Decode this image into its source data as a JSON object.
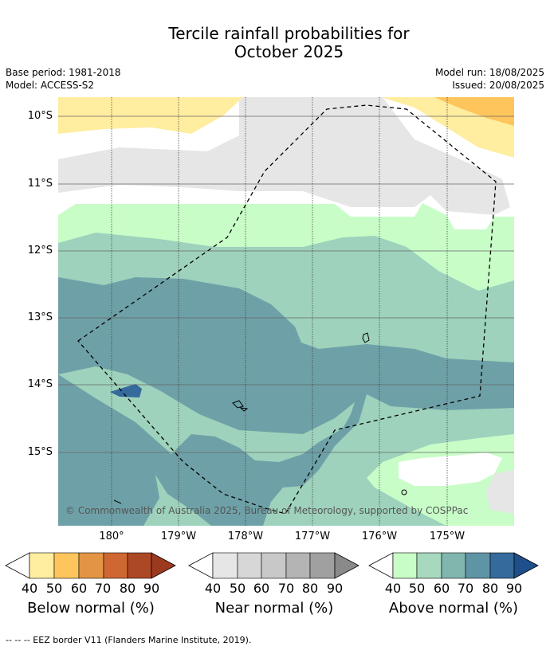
{
  "title_line1": "Tercile rainfall probabilities for",
  "title_line2": "October 2025",
  "meta": {
    "base_period": "Base period: 1981-2018",
    "model": "Model: ACCESS-S2",
    "model_run": "Model run: 18/08/2025",
    "issued": "Issued: 20/08/2025"
  },
  "lat_labels": [
    "10°S",
    "11°S",
    "12°S",
    "13°S",
    "14°S",
    "15°S"
  ],
  "lon_labels": [
    "180°",
    "179°W",
    "178°W",
    "177°W",
    "176°W",
    "175°W"
  ],
  "copyright": "© Commonwealth of Australia 2025, Bureau of Meteorology, supported by COSPPac",
  "colorbars": [
    {
      "label": "Below normal (%)",
      "ticks": [
        "40",
        "50",
        "60",
        "70",
        "80",
        "90"
      ],
      "colors": [
        "#ffeda0",
        "#fec55c",
        "#e39445",
        "#cf6733",
        "#ad4826",
        "#9b3a1e"
      ]
    },
    {
      "label": "Near normal (%)",
      "ticks": [
        "40",
        "50",
        "60",
        "70",
        "80",
        "90"
      ],
      "colors": [
        "#e6e6e6",
        "#d7d7d7",
        "#c8c8c8",
        "#b4b4b4",
        "#a0a0a0",
        "#8a8a8a"
      ]
    },
    {
      "label": "Above normal (%)",
      "ticks": [
        "40",
        "50",
        "60",
        "70",
        "80",
        "90"
      ],
      "colors": [
        "#c8fdc8",
        "#a6d9bd",
        "#80b6ae",
        "#5f94a5",
        "#356a9c",
        "#1f4f8a"
      ]
    }
  ],
  "footer": "-- -- -- EEZ border V11 (Flanders Marine Institute, 2019).",
  "map_colors": {
    "below_40": "#ffeda0",
    "below_50": "#fec55c",
    "near_40": "#e6e6e6",
    "above_40": "#c8fdc8",
    "above_50": "#9ed2bc",
    "above_60": "#6ea1a7",
    "above_80": "#356a9c"
  }
}
